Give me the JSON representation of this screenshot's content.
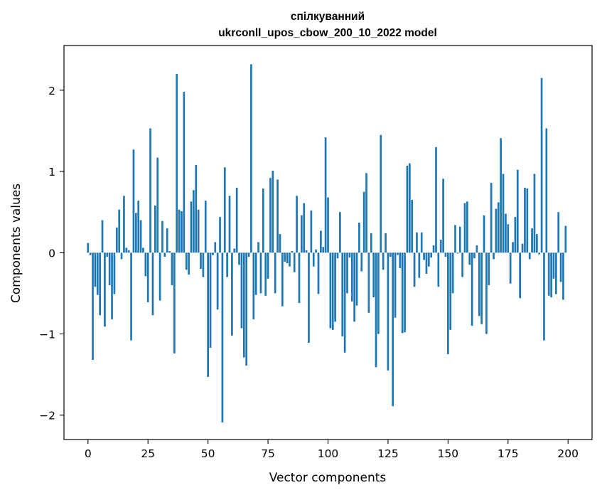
{
  "chart_data": {
    "type": "bar",
    "title_line1": "спілкуванний",
    "title_line2": "ukrconll_upos_cbow_200_10_2022 model",
    "xlabel": "Vector components",
    "ylabel": "Components values",
    "xlim": [
      -10,
      210
    ],
    "ylim": [
      -2.3,
      2.55
    ],
    "xticks": [
      0,
      25,
      50,
      75,
      100,
      125,
      150,
      175,
      200
    ],
    "xtick_labels": [
      "0",
      "25",
      "50",
      "75",
      "100",
      "125",
      "150",
      "175",
      "200"
    ],
    "yticks": [
      -2,
      -1,
      0,
      1,
      2
    ],
    "ytick_labels": [
      "−2",
      "−1",
      "0",
      "1",
      "2"
    ],
    "bar_color": "#1f77b4",
    "grid": false,
    "values": [
      0.12,
      -0.03,
      -1.32,
      -0.42,
      -0.52,
      -0.77,
      0.4,
      -0.91,
      -0.05,
      -0.4,
      -0.82,
      -0.51,
      0.31,
      0.53,
      -0.08,
      0.7,
      0.06,
      0.03,
      -1.08,
      1.27,
      0.49,
      0.64,
      0.4,
      0.06,
      -0.29,
      -0.61,
      1.53,
      -0.77,
      0.58,
      1.17,
      -0.59,
      0.39,
      -0.05,
      0.3,
      0.02,
      -0.4,
      -1.24,
      2.2,
      0.53,
      0.51,
      1.98,
      -0.21,
      -0.27,
      0.63,
      0.77,
      1.08,
      0.53,
      -0.2,
      -0.3,
      0.64,
      -1.53,
      -1.17,
      -0.03,
      0.13,
      -0.7,
      0.44,
      -2.09,
      1.05,
      -0.3,
      0.7,
      -1.02,
      0.05,
      0.8,
      -0.15,
      -0.93,
      -1.29,
      -1.39,
      -0.05,
      2.32,
      -0.82,
      -0.52,
      0.13,
      -0.5,
      0.79,
      -0.53,
      -0.32,
      0.92,
      1.01,
      -0.5,
      0.9,
      0.23,
      -0.66,
      -0.11,
      -0.13,
      -0.17,
      0.02,
      -0.24,
      0.7,
      -0.62,
      0.46,
      0.61,
      0.03,
      -1.11,
      0.52,
      -0.17,
      0.04,
      -0.51,
      0.27,
      0.07,
      1.42,
      0.68,
      -0.93,
      -0.95,
      -0.85,
      -0.07,
      0.5,
      -1.03,
      -1.23,
      -0.5,
      -0.06,
      -0.6,
      -0.85,
      -0.65,
      0.37,
      -0.23,
      0.75,
      0.98,
      -0.74,
      0.24,
      -0.55,
      -1.41,
      -1.0,
      1.45,
      -0.21,
      0.24,
      -1.45,
      -0.05,
      -1.89,
      -0.8,
      -0.03,
      -0.19,
      -0.99,
      -0.98,
      1.07,
      1.1,
      0.65,
      -0.42,
      0.25,
      -0.31,
      0.25,
      -0.09,
      -0.26,
      -0.17,
      -0.06,
      0.09,
      1.3,
      -0.42,
      0.16,
      0.91,
      -0.05,
      -1.25,
      -0.95,
      -0.5,
      0.34,
      -0.01,
      0.32,
      -0.3,
      0.61,
      0.63,
      -0.15,
      -0.9,
      -0.07,
      0.09,
      -0.78,
      -0.88,
      0.46,
      -1.0,
      -0.4,
      0.86,
      -0.08,
      0.54,
      0.62,
      1.41,
      0.97,
      0.48,
      0.35,
      -0.38,
      0.13,
      0.44,
      1.02,
      -0.56,
      0.11,
      0.8,
      0.79,
      -0.08,
      0.3,
      0.97,
      0.23,
      -0.02,
      2.15,
      -1.08,
      1.53,
      -0.53,
      -0.55,
      -0.32,
      -0.51,
      0.5,
      -0.36,
      -0.58,
      0.33
    ]
  }
}
